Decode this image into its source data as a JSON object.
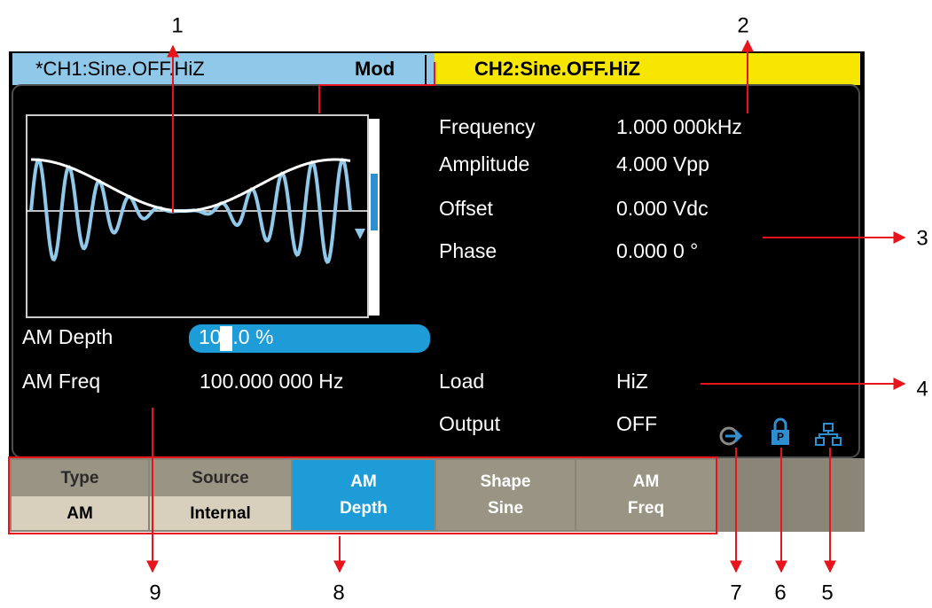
{
  "header": {
    "ch1": "*CH1:Sine.OFF.HiZ",
    "mod": "Mod",
    "ch2": "CH2:Sine.OFF.HiZ"
  },
  "params": [
    {
      "label": "Frequency",
      "value": "1.000 000kHz"
    },
    {
      "label": "Amplitude",
      "value": "4.000 Vpp"
    },
    {
      "label": "Offset",
      "value": "0.000 Vdc"
    },
    {
      "label": "Phase",
      "value": "0.000 0 °"
    }
  ],
  "am_depth": {
    "label": "AM Depth",
    "value": "100.0 %"
  },
  "am_freq": {
    "label": "AM Freq",
    "value": "100.000 000 Hz"
  },
  "load": {
    "label": "Load",
    "value": "HiZ"
  },
  "output": {
    "label": "Output",
    "value": "OFF"
  },
  "softkeys": [
    {
      "top": "Type",
      "bottom": "AM"
    },
    {
      "top": "Source",
      "bottom": "Internal"
    },
    {
      "top": "AM",
      "bottom": "Depth"
    },
    {
      "top": "Shape",
      "bottom": "Sine"
    },
    {
      "top": "AM",
      "bottom": "Freq"
    }
  ],
  "callouts": [
    "1",
    "2",
    "3",
    "4",
    "5",
    "6",
    "7",
    "8",
    "9"
  ]
}
